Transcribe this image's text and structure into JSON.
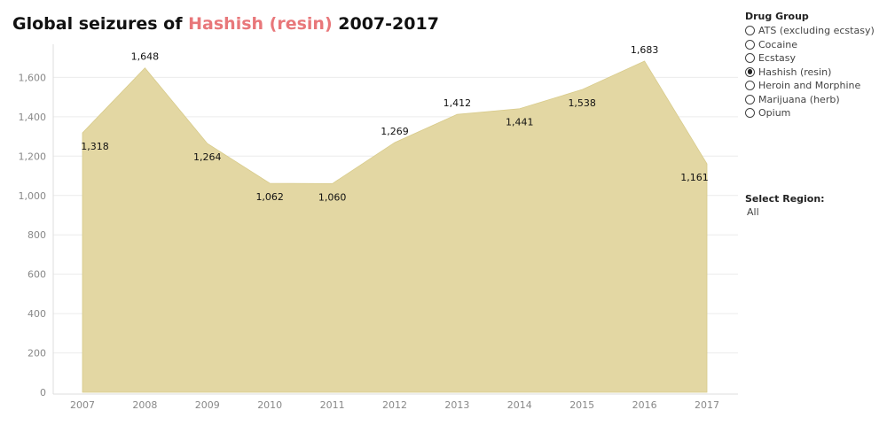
{
  "title": {
    "prefix": "Global seizures of",
    "highlight": "Hashish (resin)",
    "suffix": "2007-2017"
  },
  "colors": {
    "area_fill": "#e3d7a3",
    "area_stroke": "#d8cb8a",
    "title_highlight": "#e8777a",
    "gridline": "#ececec"
  },
  "chart_data": {
    "type": "area",
    "categories": [
      "2007",
      "2008",
      "2009",
      "2010",
      "2011",
      "2012",
      "2013",
      "2014",
      "2015",
      "2016",
      "2017"
    ],
    "values": [
      1318,
      1648,
      1264,
      1062,
      1060,
      1269,
      1412,
      1441,
      1538,
      1683,
      1161
    ],
    "data_labels": [
      "1,318",
      "1,648",
      "1,264",
      "1,062",
      "1,060",
      "1,269",
      "1,412",
      "1,441",
      "1,538",
      "1,683",
      "1,161"
    ],
    "y_ticks": [
      0,
      200,
      400,
      600,
      800,
      1000,
      1200,
      1400,
      1600
    ],
    "y_tick_labels": [
      "0",
      "200",
      "400",
      "600",
      "800",
      "1,000",
      "1,200",
      "1,400",
      "1,600"
    ],
    "ylim": [
      0,
      1680
    ],
    "xlabel": "",
    "ylabel": "",
    "grid": true
  },
  "filters": {
    "drug_group": {
      "heading": "Drug Group",
      "options": [
        "ATS (excluding ecstasy)",
        "Cocaine",
        "Ecstasy",
        "Hashish (resin)",
        "Heroin and Morphine",
        "Marijuana (herb)",
        "Opium"
      ],
      "selected": "Hashish (resin)"
    },
    "region": {
      "heading": "Select Region:",
      "value": "All"
    }
  }
}
